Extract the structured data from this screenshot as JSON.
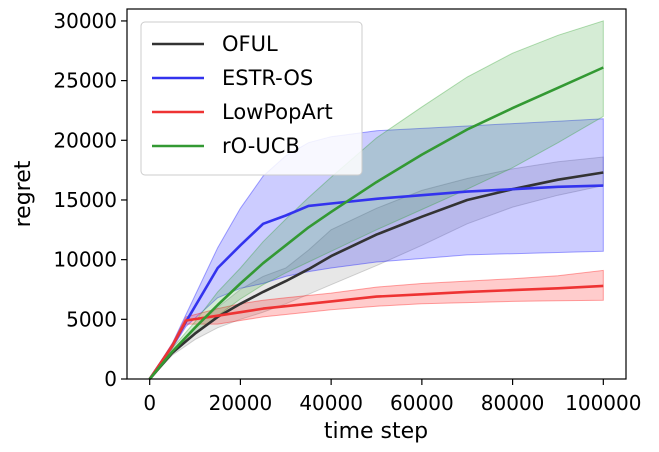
{
  "chart_data": {
    "type": "line",
    "xlabel": "time step",
    "ylabel": "regret",
    "xlim": [
      -5000,
      105000
    ],
    "ylim": [
      0,
      31000
    ],
    "x_ticks": [
      0,
      20000,
      40000,
      60000,
      80000,
      100000
    ],
    "y_ticks": [
      0,
      5000,
      10000,
      15000,
      20000,
      25000,
      30000
    ],
    "grid": false,
    "legend_position": "top-left",
    "series": [
      {
        "name": "OFUL",
        "color": "#333333",
        "fill": "#888888",
        "x": [
          0,
          5000,
          10000,
          15000,
          20000,
          25000,
          30000,
          35000,
          40000,
          50000,
          60000,
          70000,
          80000,
          90000,
          100000
        ],
        "y": [
          0,
          2200,
          3800,
          5200,
          6300,
          7300,
          8200,
          9200,
          10300,
          12100,
          13600,
          15000,
          15900,
          16700,
          17300
        ],
        "lower": [
          0,
          2000,
          3300,
          4300,
          5000,
          5600,
          6300,
          7100,
          7900,
          9500,
          11200,
          13000,
          14400,
          15400,
          16200
        ],
        "upper": [
          0,
          2400,
          4300,
          6000,
          7500,
          8600,
          9300,
          10800,
          12500,
          14300,
          15800,
          16800,
          17600,
          18200,
          18600
        ]
      },
      {
        "name": "ESTR-OS",
        "color": "#3333ee",
        "fill": "#0000ff",
        "x": [
          0,
          5000,
          8000,
          15000,
          20000,
          25000,
          30000,
          35000,
          40000,
          50000,
          60000,
          70000,
          80000,
          90000,
          100000
        ],
        "y": [
          0,
          2800,
          4800,
          9300,
          11200,
          13000,
          13700,
          14500,
          14700,
          15100,
          15400,
          15700,
          15900,
          16100,
          16200
        ],
        "lower": [
          0,
          2600,
          4400,
          6800,
          7600,
          8000,
          8600,
          9000,
          9300,
          9800,
          10100,
          10400,
          10500,
          10600,
          10700
        ],
        "upper": [
          0,
          3000,
          5400,
          11000,
          14300,
          17000,
          18700,
          19800,
          20300,
          20800,
          21000,
          21200,
          21400,
          21600,
          21800
        ]
      },
      {
        "name": "LowPopArt",
        "color": "#ee3333",
        "fill": "#ff0000",
        "x": [
          0,
          5000,
          8000,
          15000,
          20000,
          25000,
          30000,
          40000,
          50000,
          60000,
          70000,
          80000,
          90000,
          100000
        ],
        "y": [
          0,
          2800,
          4900,
          5300,
          5600,
          5900,
          6100,
          6500,
          6900,
          7100,
          7300,
          7450,
          7600,
          7800
        ],
        "lower": [
          0,
          2600,
          4600,
          4600,
          4900,
          5200,
          5400,
          5800,
          6100,
          6300,
          6400,
          6500,
          6550,
          6600
        ],
        "upper": [
          0,
          3000,
          5200,
          5900,
          6300,
          6600,
          6800,
          7200,
          7700,
          8000,
          8200,
          8400,
          8650,
          9100
        ]
      },
      {
        "name": "rO-UCB",
        "color": "#339933",
        "fill": "#2ca02c",
        "x": [
          0,
          5000,
          10000,
          15000,
          20000,
          25000,
          30000,
          35000,
          40000,
          50000,
          60000,
          70000,
          80000,
          90000,
          100000
        ],
        "y": [
          0,
          2300,
          4300,
          6200,
          8000,
          9700,
          11200,
          12700,
          14000,
          16500,
          18800,
          20900,
          22700,
          24400,
          26100
        ],
        "lower": [
          0,
          2100,
          3800,
          5300,
          6700,
          7900,
          8900,
          9800,
          10700,
          12500,
          14200,
          15900,
          17700,
          19800,
          22000
        ],
        "upper": [
          0,
          2600,
          4800,
          7300,
          9300,
          11500,
          13400,
          15200,
          16900,
          20200,
          22800,
          25300,
          27300,
          28800,
          30000
        ]
      }
    ]
  }
}
